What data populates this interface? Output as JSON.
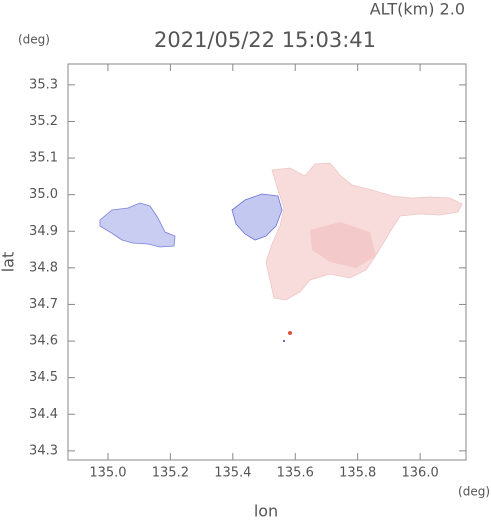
{
  "chart_data": {
    "type": "map",
    "title": "2021/05/22 15:03:41",
    "altitude_label": "ALT(km) 2.0",
    "x_label": "lon",
    "y_label": "lat",
    "x_unit": "(deg)",
    "y_unit": "(deg)",
    "xlim": [
      134.872,
      136.147
    ],
    "ylim": [
      34.275,
      35.357
    ],
    "xticks": [
      {
        "value": 135,
        "label": "135.0"
      },
      135.2,
      135.4,
      135.6,
      135.8,
      {
        "value": 136,
        "label": "136.0"
      }
    ],
    "yticks": [
      34.3,
      34.4,
      34.5,
      34.6,
      34.7,
      34.8,
      34.9,
      {
        "value": 35,
        "label": "35.0"
      },
      35.1,
      35.2,
      35.3
    ]
  }
}
